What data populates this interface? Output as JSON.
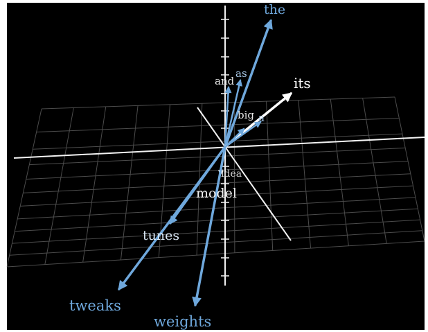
{
  "colors": {
    "background": "#000000",
    "frame": "#ffffff",
    "grid": "#8a8a8a",
    "axis": "#f2f2f2",
    "vector_blue": "#6fa8dc",
    "vector_white": "#ffffff"
  },
  "words": {
    "the": "the",
    "as": "as",
    "and": "and",
    "its": "its",
    "big": "big",
    "a": "a",
    "idea": "idea",
    "model": "model",
    "tunes": "tunes",
    "tweaks": "tweaks",
    "weights": "weights"
  }
}
